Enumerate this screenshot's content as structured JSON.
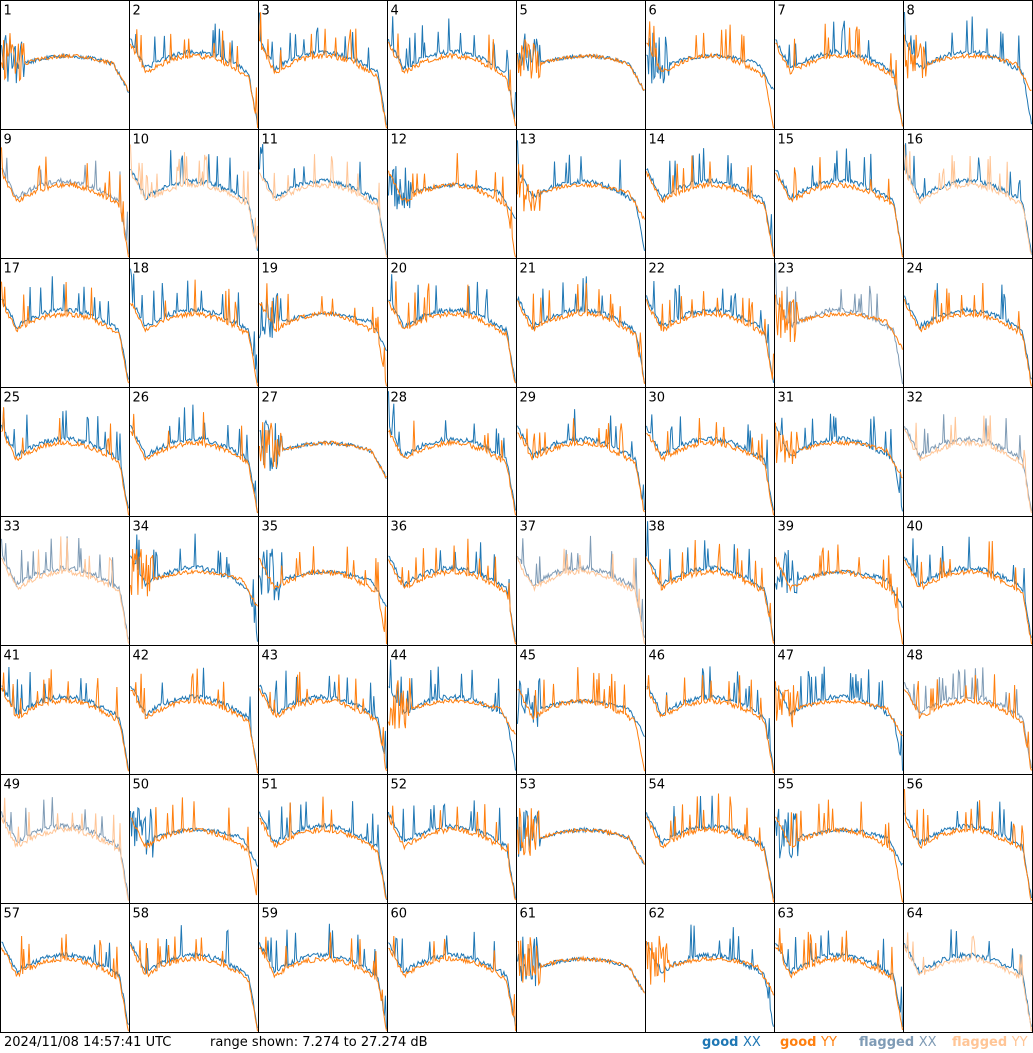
{
  "footer": {
    "timestamp": "2024/11/08 14:57:41 UTC",
    "range_text": "range shown: 7.274 to 27.274 dB"
  },
  "legend": [
    {
      "label": "good",
      "key": "XX",
      "color": "#1f77b4"
    },
    {
      "label": "good",
      "key": "YY",
      "color": "#ff7f0e"
    },
    {
      "label": "flagged",
      "key": "XX",
      "color": "#7f9bb5"
    },
    {
      "label": "flagged",
      "key": "YY",
      "color": "#ffc596"
    }
  ],
  "colors": {
    "good_xx": "#1f77b4",
    "good_yy": "#ff7f0e",
    "flagged_xx": "#7f9bb5",
    "flagged_yy": "#ffc596"
  },
  "chart_data": {
    "type": "line",
    "ylim_db": [
      7.274,
      27.274
    ],
    "grid_rows": 8,
    "grid_cols": 8,
    "series_names": [
      "XX",
      "YY"
    ],
    "tiles": [
      {
        "id": "1",
        "xx": "anomalous",
        "yy": "anomalous"
      },
      {
        "id": "2",
        "xx": "good",
        "yy": "good"
      },
      {
        "id": "3",
        "xx": "good",
        "yy": "good"
      },
      {
        "id": "4",
        "xx": "good",
        "yy": "good"
      },
      {
        "id": "5",
        "xx": "anomalous",
        "yy": "anomalous"
      },
      {
        "id": "6",
        "xx": "anomalous",
        "yy": "good"
      },
      {
        "id": "7",
        "xx": "good",
        "yy": "good"
      },
      {
        "id": "8",
        "xx": "good",
        "yy": "anomalous"
      },
      {
        "id": "9",
        "xx": "flagged",
        "yy": "good"
      },
      {
        "id": "10",
        "xx": "good",
        "yy": "flagged"
      },
      {
        "id": "11",
        "xx": "good",
        "yy": "flagged"
      },
      {
        "id": "12",
        "xx": "anomalous",
        "yy": "good"
      },
      {
        "id": "13",
        "xx": "good",
        "yy": "anomalous"
      },
      {
        "id": "14",
        "xx": "good",
        "yy": "good"
      },
      {
        "id": "15",
        "xx": "good",
        "yy": "good"
      },
      {
        "id": "16",
        "xx": "good",
        "yy": "flagged"
      },
      {
        "id": "17",
        "xx": "good",
        "yy": "good"
      },
      {
        "id": "18",
        "xx": "good",
        "yy": "good"
      },
      {
        "id": "19",
        "xx": "anomalous",
        "yy": "good"
      },
      {
        "id": "20",
        "xx": "good",
        "yy": "good"
      },
      {
        "id": "21",
        "xx": "good",
        "yy": "good"
      },
      {
        "id": "22",
        "xx": "good",
        "yy": "good"
      },
      {
        "id": "23",
        "xx": "flagged",
        "yy": "anomalous"
      },
      {
        "id": "24",
        "xx": "good",
        "yy": "good"
      },
      {
        "id": "25",
        "xx": "good",
        "yy": "good"
      },
      {
        "id": "26",
        "xx": "good",
        "yy": "good"
      },
      {
        "id": "27",
        "xx": "anomalous",
        "yy": "anomalous"
      },
      {
        "id": "28",
        "xx": "good",
        "yy": "good"
      },
      {
        "id": "29",
        "xx": "good",
        "yy": "good"
      },
      {
        "id": "30",
        "xx": "good",
        "yy": "good"
      },
      {
        "id": "31",
        "xx": "good",
        "yy": "anomalous"
      },
      {
        "id": "32",
        "xx": "flagged",
        "yy": "flagged"
      },
      {
        "id": "33",
        "xx": "flagged",
        "yy": "flagged"
      },
      {
        "id": "34",
        "xx": "good",
        "yy": "anomalous"
      },
      {
        "id": "35",
        "xx": "anomalous",
        "yy": "good"
      },
      {
        "id": "36",
        "xx": "good",
        "yy": "good"
      },
      {
        "id": "37",
        "xx": "flagged",
        "yy": "flagged"
      },
      {
        "id": "38",
        "xx": "good",
        "yy": "good"
      },
      {
        "id": "39",
        "xx": "anomalous",
        "yy": "good"
      },
      {
        "id": "40",
        "xx": "good",
        "yy": "good"
      },
      {
        "id": "41",
        "xx": "good",
        "yy": "good"
      },
      {
        "id": "42",
        "xx": "good",
        "yy": "good"
      },
      {
        "id": "43",
        "xx": "good",
        "yy": "good"
      },
      {
        "id": "44",
        "xx": "good",
        "yy": "anomalous"
      },
      {
        "id": "45",
        "xx": "anomalous",
        "yy": "good"
      },
      {
        "id": "46",
        "xx": "good",
        "yy": "good"
      },
      {
        "id": "47",
        "xx": "good",
        "yy": "anomalous"
      },
      {
        "id": "48",
        "xx": "flagged",
        "yy": "good"
      },
      {
        "id": "49",
        "xx": "flagged",
        "yy": "flagged"
      },
      {
        "id": "50",
        "xx": "anomalous",
        "yy": "good"
      },
      {
        "id": "51",
        "xx": "good",
        "yy": "good"
      },
      {
        "id": "52",
        "xx": "good",
        "yy": "good"
      },
      {
        "id": "53",
        "xx": "anomalous",
        "yy": "anomalous"
      },
      {
        "id": "54",
        "xx": "good",
        "yy": "good"
      },
      {
        "id": "55",
        "xx": "anomalous",
        "yy": "good"
      },
      {
        "id": "56",
        "xx": "good",
        "yy": "good"
      },
      {
        "id": "57",
        "xx": "good",
        "yy": "good"
      },
      {
        "id": "58",
        "xx": "good",
        "yy": "good"
      },
      {
        "id": "59",
        "xx": "good",
        "yy": "good"
      },
      {
        "id": "60",
        "xx": "good",
        "yy": "good"
      },
      {
        "id": "61",
        "xx": "anomalous",
        "yy": "anomalous"
      },
      {
        "id": "62",
        "xx": "good",
        "yy": "anomalous"
      },
      {
        "id": "63",
        "xx": "good",
        "yy": "good"
      },
      {
        "id": "64",
        "xx": "good",
        "yy": "flagged"
      }
    ]
  }
}
